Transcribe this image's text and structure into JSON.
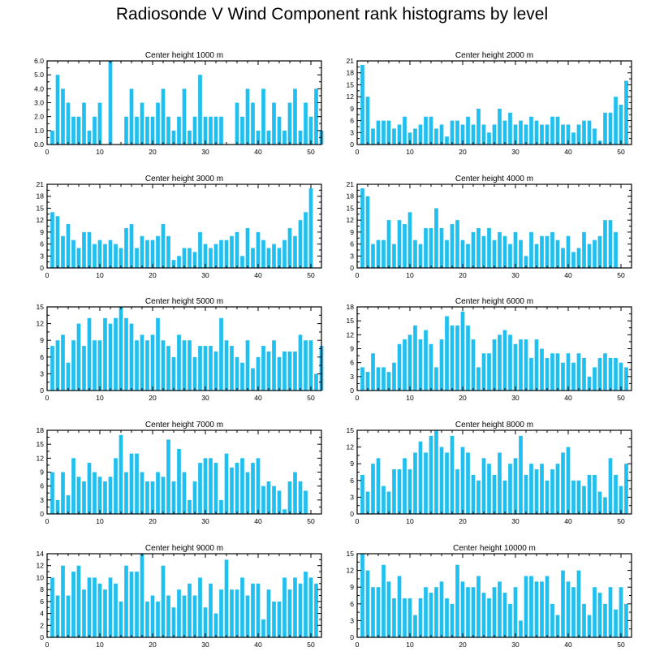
{
  "title": "Radiosonde V Wind Component rank histograms by level",
  "colors": {
    "bar": "#1fbff0",
    "axis": "#000000"
  },
  "chart_data": [
    {
      "type": "bar",
      "title": "Center height 1000 m",
      "xlim": [
        0,
        52
      ],
      "ylim": [
        0,
        6
      ],
      "yticks": [
        0,
        1,
        2,
        3,
        4,
        5,
        6
      ],
      "ytick_labels": [
        "0.0",
        "1.0",
        "2.0",
        "3.0",
        "4.0",
        "5.0",
        "6.0"
      ],
      "xticks": [
        0,
        10,
        20,
        30,
        40,
        50
      ],
      "x_start": 1,
      "values": [
        1,
        5,
        4,
        3,
        2,
        2,
        3,
        1,
        2,
        3,
        0,
        6,
        0,
        0,
        2,
        4,
        2,
        3,
        2,
        2,
        3,
        4,
        2,
        1,
        2,
        4,
        1,
        2,
        5,
        2,
        2,
        2,
        2,
        0,
        0,
        3,
        2,
        4,
        3,
        1,
        4,
        1,
        3,
        2,
        1,
        3,
        4,
        1,
        3,
        2,
        4,
        1
      ]
    },
    {
      "type": "bar",
      "title": "Center height 2000 m",
      "xlim": [
        0,
        52
      ],
      "ylim": [
        0,
        21
      ],
      "yticks": [
        0,
        3,
        6,
        9,
        12,
        15,
        18,
        21
      ],
      "ytick_labels": [
        "0",
        "3",
        "6",
        "9",
        "12",
        "15",
        "18",
        "21"
      ],
      "xticks": [
        0,
        10,
        20,
        30,
        40,
        50
      ],
      "x_start": 1,
      "values": [
        20,
        12,
        4,
        6,
        6,
        6,
        4,
        5,
        7,
        3,
        4,
        5,
        7,
        7,
        4,
        5,
        2,
        6,
        6,
        5,
        7,
        5,
        9,
        5,
        3,
        5,
        9,
        6,
        8,
        5,
        6,
        5,
        7,
        6,
        5,
        5,
        7,
        7,
        5,
        5,
        3,
        5,
        6,
        6,
        4,
        1,
        8,
        8,
        12,
        10,
        16
      ]
    },
    {
      "type": "bar",
      "title": "Center height 3000 m",
      "xlim": [
        0,
        52
      ],
      "ylim": [
        0,
        21
      ],
      "yticks": [
        0,
        3,
        6,
        9,
        12,
        15,
        18,
        21
      ],
      "ytick_labels": [
        "0",
        "3",
        "6",
        "9",
        "12",
        "15",
        "18",
        "21"
      ],
      "xticks": [
        0,
        10,
        20,
        30,
        40,
        50
      ],
      "x_start": 1,
      "values": [
        14,
        13,
        8,
        11,
        7,
        5,
        9,
        9,
        6,
        7,
        6,
        7,
        6,
        5,
        10,
        11,
        5,
        8,
        7,
        7,
        8,
        11,
        8,
        2,
        3,
        5,
        5,
        4,
        9,
        6,
        5,
        6,
        7,
        7,
        8,
        9,
        3,
        10,
        5,
        9,
        7,
        5,
        6,
        5,
        7,
        10,
        8,
        12,
        14,
        20
      ]
    },
    {
      "type": "bar",
      "title": "Center height 4000 m",
      "xlim": [
        0,
        52
      ],
      "ylim": [
        0,
        21
      ],
      "yticks": [
        0,
        3,
        6,
        9,
        12,
        15,
        18,
        21
      ],
      "ytick_labels": [
        "0",
        "3",
        "6",
        "9",
        "12",
        "15",
        "18",
        "21"
      ],
      "xticks": [
        0,
        10,
        20,
        30,
        40,
        50
      ],
      "x_start": 1,
      "values": [
        20,
        18,
        6,
        7,
        7,
        12,
        6,
        12,
        11,
        14,
        7,
        6,
        10,
        10,
        15,
        10,
        7,
        11,
        12,
        7,
        6,
        9,
        10,
        8,
        10,
        7,
        9,
        8,
        6,
        9,
        7,
        3,
        9,
        6,
        8,
        8,
        9,
        7,
        5,
        8,
        4,
        5,
        9,
        6,
        7,
        8,
        12,
        12,
        9
      ]
    },
    {
      "type": "bar",
      "title": "Center height 5000 m",
      "xlim": [
        0,
        52
      ],
      "ylim": [
        0,
        15
      ],
      "yticks": [
        0,
        3,
        6,
        9,
        12,
        15
      ],
      "ytick_labels": [
        "0",
        "3",
        "6",
        "9",
        "12",
        "15"
      ],
      "xticks": [
        0,
        10,
        20,
        30,
        40,
        50
      ],
      "x_start": 1,
      "values": [
        8,
        9,
        10,
        5,
        9,
        12,
        8,
        13,
        9,
        9,
        13,
        12,
        13,
        15,
        13,
        12,
        9,
        10,
        9,
        10,
        13,
        9,
        8,
        6,
        10,
        9,
        9,
        6,
        8,
        8,
        8,
        7,
        13,
        9,
        8,
        6,
        5,
        9,
        4,
        6,
        8,
        7,
        9,
        6,
        7,
        7,
        7,
        10,
        9,
        9,
        3,
        8
      ]
    },
    {
      "type": "bar",
      "title": "Center height 6000 m",
      "xlim": [
        0,
        52
      ],
      "ylim": [
        0,
        18
      ],
      "yticks": [
        0,
        3,
        6,
        9,
        12,
        15,
        18
      ],
      "ytick_labels": [
        "0",
        "3",
        "6",
        "9",
        "12",
        "15",
        "18"
      ],
      "xticks": [
        0,
        10,
        20,
        30,
        40,
        50
      ],
      "x_start": 1,
      "values": [
        5,
        4,
        8,
        5,
        5,
        4,
        6,
        10,
        11,
        12,
        14,
        11,
        13,
        10,
        5,
        11,
        16,
        14,
        14,
        17,
        14,
        11,
        5,
        8,
        8,
        11,
        12,
        13,
        12,
        10,
        11,
        11,
        7,
        11,
        9,
        7,
        8,
        8,
        6,
        8,
        6,
        8,
        7,
        3,
        5,
        7,
        8,
        7,
        7,
        6,
        5
      ]
    },
    {
      "type": "bar",
      "title": "Center height 7000 m",
      "xlim": [
        0,
        52
      ],
      "ylim": [
        0,
        18
      ],
      "yticks": [
        0,
        3,
        6,
        9,
        12,
        15,
        18
      ],
      "ytick_labels": [
        "0",
        "3",
        "6",
        "9",
        "12",
        "15",
        "18"
      ],
      "xticks": [
        0,
        10,
        20,
        30,
        40,
        50
      ],
      "x_start": 1,
      "values": [
        9,
        3,
        9,
        4,
        12,
        8,
        7,
        11,
        9,
        8,
        7,
        8,
        12,
        17,
        9,
        13,
        13,
        9,
        7,
        7,
        9,
        8,
        16,
        7,
        14,
        9,
        3,
        7,
        11,
        12,
        12,
        11,
        3,
        13,
        10,
        11,
        12,
        9,
        11,
        12,
        6,
        7,
        6,
        5,
        1,
        7,
        9,
        7,
        5
      ]
    },
    {
      "type": "bar",
      "title": "Center height 8000 m",
      "xlim": [
        0,
        52
      ],
      "ylim": [
        0,
        15
      ],
      "yticks": [
        0,
        3,
        6,
        9,
        12,
        15
      ],
      "ytick_labels": [
        "0",
        "3",
        "6",
        "9",
        "12",
        "15"
      ],
      "xticks": [
        0,
        10,
        20,
        30,
        40,
        50
      ],
      "x_start": 1,
      "values": [
        7,
        4,
        9,
        10,
        5,
        4,
        8,
        8,
        10,
        8,
        11,
        13,
        11,
        14,
        15,
        12,
        11,
        14,
        8,
        12,
        11,
        7,
        6,
        10,
        9,
        7,
        11,
        6,
        9,
        10,
        14,
        7,
        9,
        8,
        9,
        6,
        8,
        9,
        11,
        12,
        6,
        6,
        5,
        7,
        7,
        4,
        3,
        10,
        7,
        5,
        9
      ]
    },
    {
      "type": "bar",
      "title": "Center height 9000 m",
      "xlim": [
        0,
        52
      ],
      "ylim": [
        0,
        14
      ],
      "yticks": [
        0,
        2,
        4,
        6,
        8,
        10,
        12,
        14
      ],
      "ytick_labels": [
        "0",
        "2",
        "4",
        "6",
        "8",
        "10",
        "12",
        "14"
      ],
      "xticks": [
        0,
        10,
        20,
        30,
        40,
        50
      ],
      "x_start": 1,
      "values": [
        10,
        7,
        12,
        7,
        11,
        12,
        8,
        10,
        10,
        9,
        8,
        10,
        9,
        6,
        12,
        11,
        11,
        14,
        6,
        7,
        6,
        12,
        7,
        5,
        8,
        7,
        9,
        7,
        10,
        5,
        9,
        4,
        8,
        13,
        8,
        8,
        10,
        7,
        9,
        9,
        3,
        8,
        6,
        6,
        10,
        8,
        10,
        9,
        11,
        10,
        9
      ]
    },
    {
      "type": "bar",
      "title": "Center height 10000 m",
      "xlim": [
        0,
        52
      ],
      "ylim": [
        0,
        15
      ],
      "yticks": [
        0,
        3,
        6,
        9,
        12,
        15
      ],
      "ytick_labels": [
        "0",
        "3",
        "6",
        "9",
        "12",
        "15"
      ],
      "xticks": [
        0,
        10,
        20,
        30,
        40,
        50
      ],
      "x_start": 1,
      "values": [
        15,
        12,
        9,
        9,
        13,
        10,
        7,
        11,
        7,
        7,
        4,
        7,
        9,
        8,
        9,
        10,
        7,
        6,
        13,
        10,
        9,
        9,
        11,
        8,
        7,
        9,
        10,
        8,
        6,
        9,
        3,
        11,
        11,
        10,
        10,
        11,
        6,
        4,
        12,
        10,
        9,
        12,
        6,
        4,
        9,
        8,
        6,
        9,
        5,
        9,
        6
      ]
    }
  ]
}
